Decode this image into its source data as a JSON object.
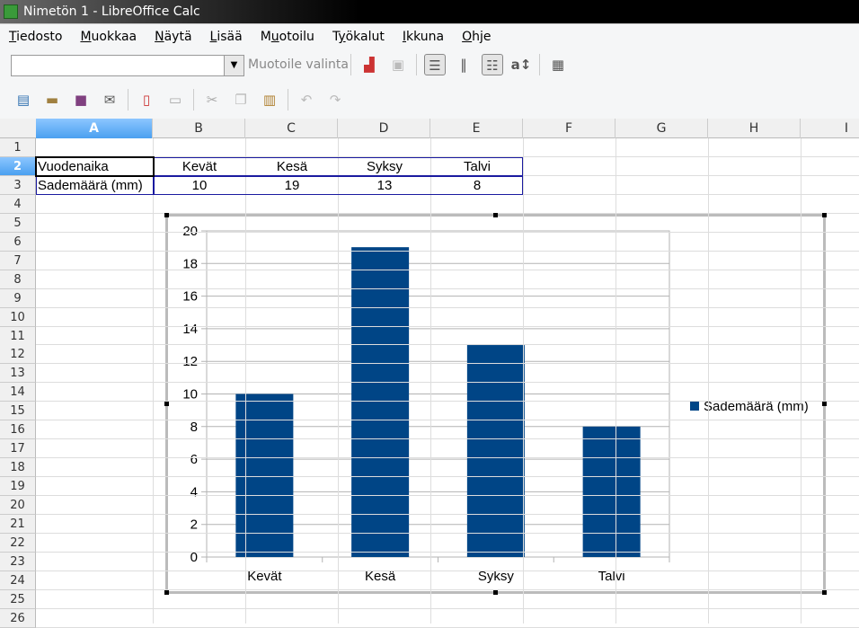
{
  "window": {
    "title": "Nimetön 1 - LibreOffice Calc"
  },
  "menu": [
    {
      "u": "T",
      "rest": "iedosto"
    },
    {
      "u": "M",
      "rest": "uokkaa"
    },
    {
      "u": "N",
      "rest": "äytä"
    },
    {
      "u": "L",
      "rest": "isää"
    },
    {
      "pre": "M",
      "u": "u",
      "rest": "otoilu"
    },
    {
      "pre": "T",
      "u": "y",
      "rest": "ökalut"
    },
    {
      "u": "I",
      "rest": "kkuna"
    },
    {
      "u": "O",
      "rest": "hje"
    }
  ],
  "toolbar": {
    "style_value": "",
    "style_label": "Muotoile valinta"
  },
  "columns": [
    "A",
    "B",
    "C",
    "D",
    "E",
    "F",
    "G",
    "H",
    "I"
  ],
  "rows": [
    "1",
    "2",
    "3",
    "4",
    "5",
    "6",
    "7",
    "8",
    "9",
    "10",
    "11",
    "12",
    "13",
    "14",
    "15",
    "16",
    "17",
    "18",
    "19",
    "20",
    "21",
    "22",
    "23",
    "24",
    "25",
    "26"
  ],
  "cells": {
    "A2": "Vuodenaika",
    "B2": "Kevät",
    "C2": "Kesä",
    "D2": "Syksy",
    "E2": "Talvi",
    "A3": "Sademäärä (mm)",
    "B3": "10",
    "C3": "19",
    "D3": "13",
    "E3": "8"
  },
  "chart_data": {
    "type": "bar",
    "categories": [
      "Kevät",
      "Kesä",
      "Syksy",
      "Talvi"
    ],
    "series": [
      {
        "name": "Sademäärä (mm)",
        "values": [
          10,
          19,
          13,
          8
        ],
        "color": "#004586"
      }
    ],
    "ylim": [
      0,
      20
    ],
    "yticks": [
      "0",
      "2",
      "4",
      "6",
      "8",
      "10",
      "12",
      "14",
      "16",
      "18",
      "20"
    ],
    "grid": true,
    "legend": "right"
  }
}
